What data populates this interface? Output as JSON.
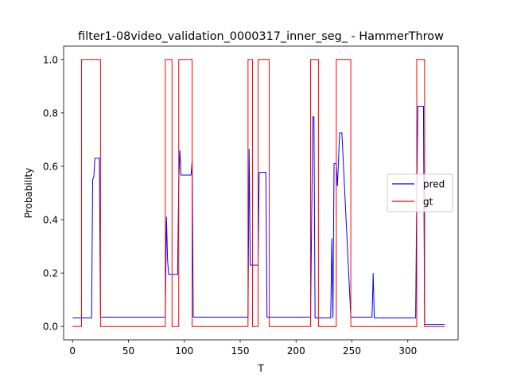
{
  "chart_data": {
    "type": "line",
    "title": "filter1-08video_validation_0000317_inner_seg_ - HammerThrow",
    "xlabel": "T",
    "ylabel": "Probability",
    "xlim": [
      -8,
      345
    ],
    "ylim": [
      -0.05,
      1.05
    ],
    "xticks": [
      0,
      50,
      100,
      150,
      200,
      250,
      300
    ],
    "yticks": [
      0.0,
      0.2,
      0.4,
      0.6,
      0.8,
      1.0
    ],
    "xtick_labels": [
      "0",
      "50",
      "100",
      "150",
      "200",
      "250",
      "300"
    ],
    "ytick_labels": [
      "0.0",
      "0.2",
      "0.4",
      "0.6",
      "0.8",
      "1.0"
    ],
    "grid": false,
    "legend_position": "center-right",
    "series": [
      {
        "name": "pred",
        "color": "#0000ff",
        "x": [
          0,
          17,
          18,
          19,
          20,
          21,
          24,
          25,
          83,
          84,
          85,
          86,
          94,
          95,
          96,
          97,
          106,
          107,
          108,
          157,
          158,
          159,
          166,
          167,
          173,
          174,
          175,
          213,
          214,
          215,
          216,
          217,
          231,
          232,
          233,
          234,
          236,
          237,
          239,
          240,
          241,
          249,
          250,
          268,
          269,
          270,
          307,
          308,
          309,
          314,
          315,
          333
        ],
        "y": [
          0.032,
          0.032,
          0.55,
          0.56,
          0.63,
          0.63,
          0.63,
          0.035,
          0.035,
          0.41,
          0.25,
          0.195,
          0.195,
          0.54,
          0.66,
          0.567,
          0.567,
          0.62,
          0.035,
          0.035,
          0.665,
          0.23,
          0.23,
          0.577,
          0.577,
          0.035,
          0.035,
          0.035,
          0.42,
          0.785,
          0.785,
          0.032,
          0.032,
          0.33,
          0.032,
          0.61,
          0.61,
          0.525,
          0.725,
          0.725,
          0.725,
          0.035,
          0.035,
          0.035,
          0.2,
          0.032,
          0.032,
          0.5,
          0.825,
          0.825,
          0.008,
          0.008
        ]
      },
      {
        "name": "gt",
        "color": "#ff0000",
        "x": [
          0,
          8,
          8,
          25,
          25,
          83,
          83,
          89,
          89,
          95,
          95,
          107,
          107,
          157,
          157,
          161,
          161,
          166,
          166,
          176,
          176,
          213,
          213,
          220,
          220,
          236,
          236,
          249,
          249,
          308,
          308,
          315,
          315,
          333
        ],
        "y": [
          0,
          0,
          1,
          1,
          0,
          0,
          1,
          1,
          0,
          0,
          1,
          1,
          0,
          0,
          1,
          1,
          0,
          0,
          1,
          1,
          0,
          0,
          1,
          1,
          0,
          0,
          1,
          1,
          0,
          0,
          1,
          1,
          0,
          0
        ]
      }
    ]
  }
}
